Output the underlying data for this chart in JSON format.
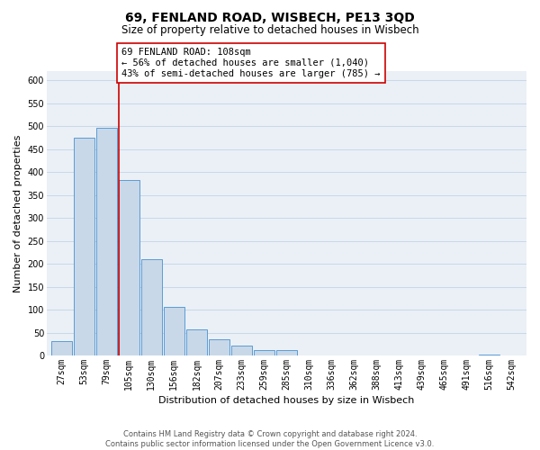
{
  "title": "69, FENLAND ROAD, WISBECH, PE13 3QD",
  "subtitle": "Size of property relative to detached houses in Wisbech",
  "xlabel": "Distribution of detached houses by size in Wisbech",
  "ylabel": "Number of detached properties",
  "bin_labels": [
    "27sqm",
    "53sqm",
    "79sqm",
    "105sqm",
    "130sqm",
    "156sqm",
    "182sqm",
    "207sqm",
    "233sqm",
    "259sqm",
    "285sqm",
    "310sqm",
    "336sqm",
    "362sqm",
    "388sqm",
    "413sqm",
    "439sqm",
    "465sqm",
    "491sqm",
    "516sqm",
    "542sqm"
  ],
  "bar_heights": [
    32,
    475,
    497,
    383,
    210,
    106,
    57,
    36,
    21,
    12,
    11,
    0,
    0,
    0,
    0,
    0,
    0,
    0,
    0,
    2,
    1
  ],
  "bar_color": "#c8d8e8",
  "bar_edge_color": "#5b9bd5",
  "highlight_line_bar_index": 3,
  "highlight_line_color": "#cc0000",
  "annotation_line1": "69 FENLAND ROAD: 108sqm",
  "annotation_line2": "← 56% of detached houses are smaller (1,040)",
  "annotation_line3": "43% of semi-detached houses are larger (785) →",
  "annotation_box_color": "#ffffff",
  "annotation_box_edge_color": "#cc0000",
  "ylim": [
    0,
    620
  ],
  "yticks": [
    0,
    50,
    100,
    150,
    200,
    250,
    300,
    350,
    400,
    450,
    500,
    550,
    600
  ],
  "footer_text": "Contains HM Land Registry data © Crown copyright and database right 2024.\nContains public sector information licensed under the Open Government Licence v3.0.",
  "background_color": "#ffffff",
  "plot_bg_color": "#eaf0f6",
  "grid_color": "#c8d8e8",
  "title_fontsize": 10,
  "subtitle_fontsize": 8.5,
  "axis_label_fontsize": 8,
  "tick_fontsize": 7,
  "annotation_fontsize": 7.5,
  "footer_fontsize": 6
}
